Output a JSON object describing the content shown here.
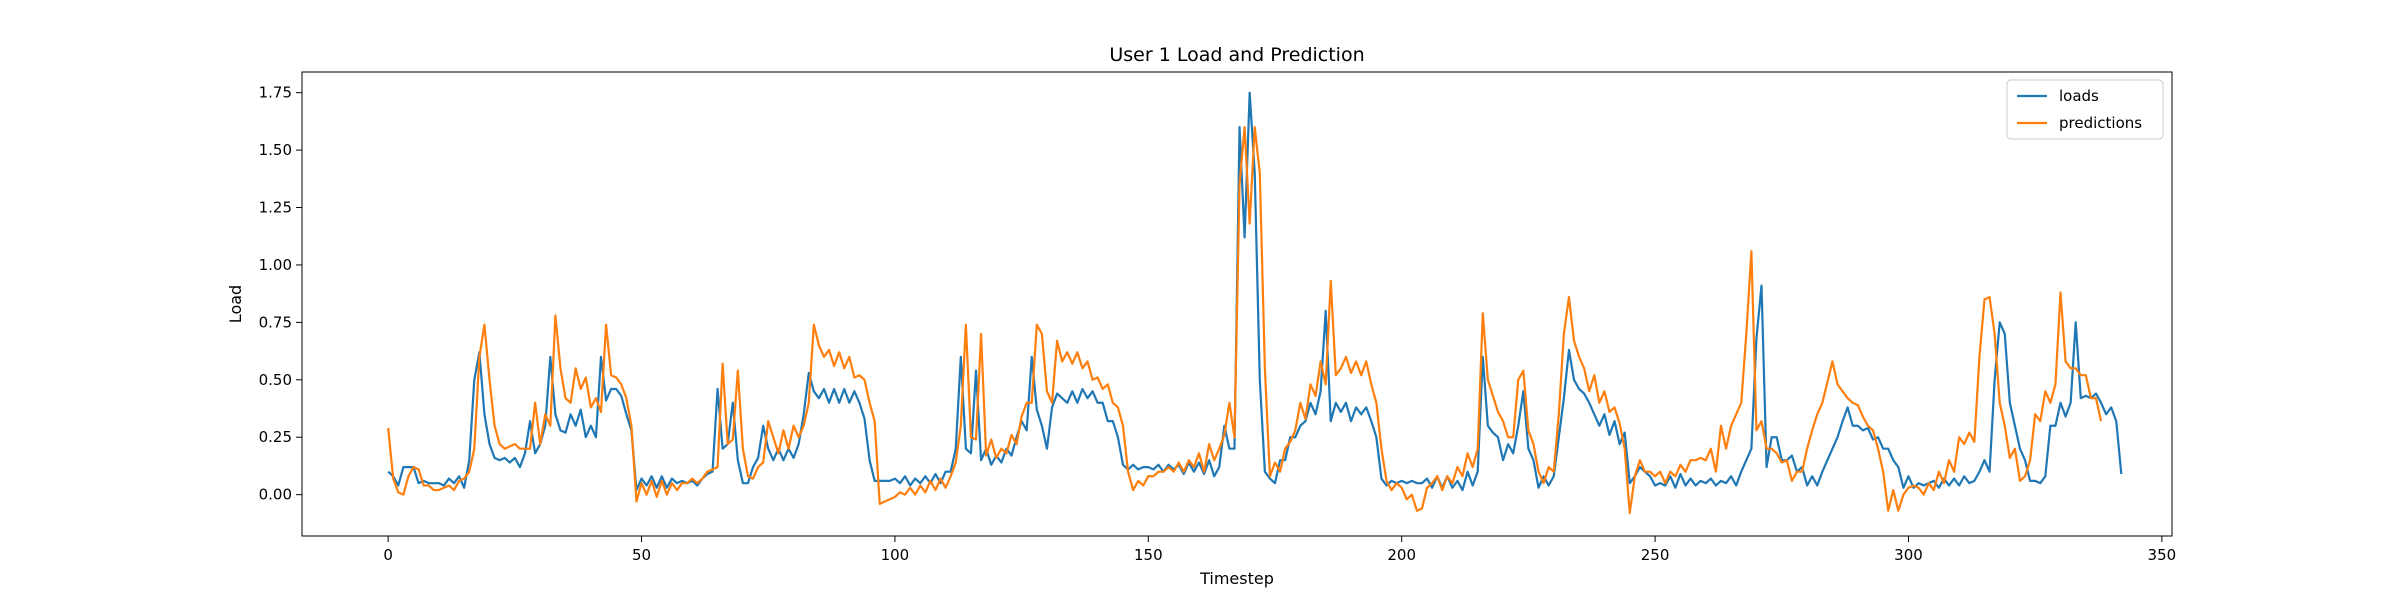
{
  "chart_data": {
    "type": "line",
    "title": "User 1 Load and Prediction",
    "xlabel": "Timestep",
    "ylabel": "Load",
    "xlim": [
      -17,
      352
    ],
    "ylim": [
      -0.18,
      1.84
    ],
    "xticks": [
      0,
      50,
      100,
      150,
      200,
      250,
      300,
      350
    ],
    "yticks": [
      0.0,
      0.25,
      0.5,
      0.75,
      1.0,
      1.25,
      1.5,
      1.75
    ],
    "xtick_labels": [
      "0",
      "50",
      "100",
      "150",
      "200",
      "250",
      "300",
      "350"
    ],
    "ytick_labels": [
      "0.00",
      "0.25",
      "0.50",
      "0.75",
      "1.00",
      "1.25",
      "1.50",
      "1.75"
    ],
    "grid": false,
    "legend_position": "top-right",
    "x_start": 0,
    "series": [
      {
        "name": "loads",
        "color": "#1f77b4",
        "values": [
          0.1,
          0.08,
          0.04,
          0.12,
          0.12,
          0.12,
          0.05,
          0.06,
          0.05,
          0.05,
          0.05,
          0.04,
          0.07,
          0.05,
          0.08,
          0.03,
          0.15,
          0.5,
          0.62,
          0.35,
          0.22,
          0.16,
          0.15,
          0.16,
          0.14,
          0.16,
          0.12,
          0.18,
          0.32,
          0.18,
          0.22,
          0.3,
          0.6,
          0.35,
          0.28,
          0.27,
          0.35,
          0.3,
          0.37,
          0.25,
          0.3,
          0.25,
          0.6,
          0.41,
          0.46,
          0.46,
          0.43,
          0.35,
          0.28,
          0.02,
          0.07,
          0.04,
          0.08,
          0.03,
          0.08,
          0.03,
          0.07,
          0.05,
          0.06,
          0.05,
          0.06,
          0.04,
          0.07,
          0.09,
          0.1,
          0.46,
          0.2,
          0.22,
          0.4,
          0.15,
          0.05,
          0.05,
          0.12,
          0.16,
          0.3,
          0.2,
          0.15,
          0.2,
          0.15,
          0.2,
          0.16,
          0.22,
          0.35,
          0.53,
          0.45,
          0.42,
          0.46,
          0.4,
          0.46,
          0.4,
          0.46,
          0.4,
          0.45,
          0.4,
          0.33,
          0.15,
          0.06,
          0.06,
          0.06,
          0.06,
          0.07,
          0.05,
          0.08,
          0.04,
          0.07,
          0.05,
          0.08,
          0.05,
          0.09,
          0.05,
          0.1,
          0.1,
          0.2,
          0.6,
          0.2,
          0.18,
          0.54,
          0.15,
          0.2,
          0.13,
          0.17,
          0.14,
          0.2,
          0.17,
          0.25,
          0.32,
          0.28,
          0.6,
          0.37,
          0.3,
          0.2,
          0.38,
          0.44,
          0.42,
          0.4,
          0.45,
          0.4,
          0.46,
          0.42,
          0.45,
          0.4,
          0.4,
          0.32,
          0.32,
          0.25,
          0.13,
          0.11,
          0.13,
          0.11,
          0.12,
          0.12,
          0.11,
          0.13,
          0.1,
          0.13,
          0.11,
          0.13,
          0.09,
          0.14,
          0.1,
          0.14,
          0.09,
          0.15,
          0.08,
          0.12,
          0.3,
          0.2,
          0.2,
          1.6,
          1.12,
          1.75,
          1.4,
          0.5,
          0.1,
          0.07,
          0.05,
          0.15,
          0.15,
          0.25,
          0.25,
          0.3,
          0.32,
          0.4,
          0.35,
          0.45,
          0.8,
          0.32,
          0.4,
          0.36,
          0.4,
          0.32,
          0.38,
          0.35,
          0.38,
          0.32,
          0.25,
          0.07,
          0.04,
          0.06,
          0.05,
          0.06,
          0.05,
          0.06,
          0.05,
          0.05,
          0.07,
          0.03,
          0.08,
          0.03,
          0.08,
          0.03,
          0.06,
          0.02,
          0.1,
          0.04,
          0.1,
          0.6,
          0.3,
          0.27,
          0.25,
          0.15,
          0.22,
          0.18,
          0.3,
          0.45,
          0.2,
          0.15,
          0.03,
          0.08,
          0.04,
          0.08,
          0.25,
          0.42,
          0.63,
          0.5,
          0.46,
          0.44,
          0.4,
          0.35,
          0.3,
          0.35,
          0.26,
          0.32,
          0.22,
          0.27,
          0.05,
          0.08,
          0.12,
          0.1,
          0.08,
          0.04,
          0.05,
          0.04,
          0.08,
          0.03,
          0.09,
          0.04,
          0.07,
          0.04,
          0.06,
          0.05,
          0.07,
          0.04,
          0.06,
          0.05,
          0.08,
          0.04,
          0.1,
          0.15,
          0.2,
          0.68,
          0.91,
          0.12,
          0.25,
          0.25,
          0.15,
          0.15,
          0.17,
          0.1,
          0.12,
          0.04,
          0.08,
          0.04,
          0.1,
          0.15,
          0.2,
          0.25,
          0.32,
          0.38,
          0.3,
          0.3,
          0.28,
          0.29,
          0.24,
          0.25,
          0.2,
          0.2,
          0.15,
          0.12,
          0.03,
          0.08,
          0.03,
          0.05,
          0.04,
          0.05,
          0.06,
          0.03,
          0.07,
          0.04,
          0.07,
          0.04,
          0.08,
          0.05,
          0.06,
          0.1,
          0.15,
          0.1,
          0.5,
          0.75,
          0.7,
          0.4,
          0.3,
          0.2,
          0.15,
          0.06,
          0.06,
          0.05,
          0.08,
          0.3,
          0.3,
          0.4,
          0.34,
          0.4,
          0.75,
          0.42,
          0.43,
          0.42,
          0.44,
          0.4,
          0.35,
          0.38,
          0.32,
          0.09
        ]
      },
      {
        "name": "predictions",
        "color": "#ff7f0e",
        "values": [
          0.29,
          0.07,
          0.01,
          0.0,
          0.08,
          0.12,
          0.11,
          0.04,
          0.04,
          0.02,
          0.02,
          0.03,
          0.04,
          0.02,
          0.06,
          0.07,
          0.1,
          0.2,
          0.6,
          0.74,
          0.5,
          0.3,
          0.22,
          0.2,
          0.21,
          0.22,
          0.2,
          0.2,
          0.2,
          0.4,
          0.22,
          0.35,
          0.3,
          0.78,
          0.55,
          0.42,
          0.4,
          0.55,
          0.46,
          0.51,
          0.38,
          0.42,
          0.36,
          0.74,
          0.52,
          0.51,
          0.48,
          0.42,
          0.3,
          -0.03,
          0.05,
          0.0,
          0.06,
          -0.01,
          0.06,
          0.0,
          0.05,
          0.02,
          0.05,
          0.05,
          0.07,
          0.05,
          0.07,
          0.1,
          0.11,
          0.12,
          0.57,
          0.22,
          0.24,
          0.54,
          0.2,
          0.08,
          0.07,
          0.12,
          0.14,
          0.32,
          0.25,
          0.18,
          0.28,
          0.2,
          0.3,
          0.25,
          0.3,
          0.4,
          0.74,
          0.65,
          0.6,
          0.63,
          0.56,
          0.62,
          0.55,
          0.6,
          0.51,
          0.52,
          0.5,
          0.4,
          0.32,
          -0.04,
          -0.03,
          -0.02,
          -0.01,
          0.01,
          0.0,
          0.03,
          0.0,
          0.04,
          0.01,
          0.06,
          0.02,
          0.07,
          0.03,
          0.08,
          0.14,
          0.3,
          0.74,
          0.25,
          0.24,
          0.7,
          0.17,
          0.24,
          0.16,
          0.2,
          0.18,
          0.26,
          0.22,
          0.34,
          0.4,
          0.4,
          0.74,
          0.7,
          0.45,
          0.4,
          0.67,
          0.58,
          0.62,
          0.57,
          0.62,
          0.55,
          0.58,
          0.5,
          0.51,
          0.46,
          0.48,
          0.4,
          0.38,
          0.3,
          0.1,
          0.02,
          0.06,
          0.04,
          0.08,
          0.08,
          0.1,
          0.1,
          0.12,
          0.1,
          0.14,
          0.1,
          0.15,
          0.12,
          0.18,
          0.1,
          0.22,
          0.15,
          0.2,
          0.26,
          0.4,
          0.25,
          1.35,
          1.6,
          1.18,
          1.6,
          1.4,
          0.55,
          0.08,
          0.14,
          0.1,
          0.2,
          0.23,
          0.28,
          0.4,
          0.33,
          0.48,
          0.43,
          0.58,
          0.48,
          0.93,
          0.52,
          0.55,
          0.6,
          0.53,
          0.58,
          0.52,
          0.58,
          0.48,
          0.4,
          0.2,
          0.06,
          0.02,
          0.05,
          0.03,
          -0.02,
          0.0,
          -0.07,
          -0.06,
          0.03,
          0.05,
          0.08,
          0.02,
          0.08,
          0.05,
          0.12,
          0.08,
          0.18,
          0.12,
          0.2,
          0.79,
          0.5,
          0.43,
          0.36,
          0.32,
          0.25,
          0.25,
          0.5,
          0.54,
          0.28,
          0.22,
          0.1,
          0.05,
          0.12,
          0.1,
          0.35,
          0.7,
          0.86,
          0.67,
          0.6,
          0.55,
          0.45,
          0.52,
          0.4,
          0.45,
          0.36,
          0.38,
          0.31,
          0.2,
          -0.08,
          0.08,
          0.15,
          0.1,
          0.1,
          0.08,
          0.1,
          0.05,
          0.1,
          0.08,
          0.13,
          0.1,
          0.15,
          0.15,
          0.16,
          0.15,
          0.2,
          0.1,
          0.3,
          0.2,
          0.3,
          0.35,
          0.4,
          0.7,
          1.06,
          0.28,
          0.32,
          0.2,
          0.2,
          0.18,
          0.14,
          0.15,
          0.06,
          0.1,
          0.1,
          0.2,
          0.28,
          0.35,
          0.4,
          0.49,
          0.58,
          0.48,
          0.45,
          0.42,
          0.4,
          0.39,
          0.34,
          0.3,
          0.28,
          0.2,
          0.1,
          -0.07,
          0.02,
          -0.07,
          0.0,
          0.03,
          0.04,
          0.03,
          0.0,
          0.05,
          0.02,
          0.1,
          0.05,
          0.15,
          0.1,
          0.25,
          0.22,
          0.27,
          0.23,
          0.6,
          0.85,
          0.86,
          0.7,
          0.4,
          0.3,
          0.16,
          0.2,
          0.06,
          0.08,
          0.15,
          0.35,
          0.32,
          0.45,
          0.4,
          0.48,
          0.88,
          0.58,
          0.55,
          0.55,
          0.52,
          0.52,
          0.42,
          0.42,
          0.32
        ]
      }
    ]
  }
}
